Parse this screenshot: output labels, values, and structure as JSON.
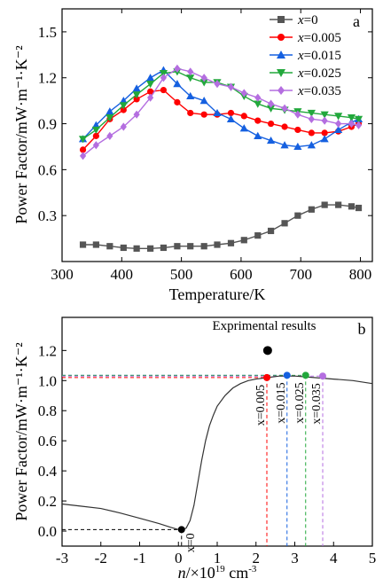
{
  "chart_data": [
    {
      "type": "line",
      "panel_label": "a",
      "xlabel": "Temperature/K",
      "ylabel": "Power Factor/mW·m⁻¹·K⁻²",
      "xlim": [
        300,
        820
      ],
      "ylim": [
        0.0,
        1.65
      ],
      "xticks": [
        300,
        400,
        500,
        600,
        700,
        800
      ],
      "yticks": [
        0.3,
        0.6,
        0.9,
        1.2,
        1.5
      ],
      "ytick_labels": [
        "0.3",
        "0.6",
        "0.9",
        "1.2",
        "1.5"
      ],
      "legend_position": "top-right",
      "series": [
        {
          "name": "x=0",
          "label_prefix": "x",
          "label_value": "=0",
          "color": "#555555",
          "marker": "square",
          "x": [
            335,
            357,
            380,
            403,
            425,
            448,
            470,
            493,
            515,
            538,
            560,
            583,
            605,
            628,
            650,
            673,
            695,
            718,
            740,
            763,
            785,
            797
          ],
          "y": [
            0.11,
            0.11,
            0.1,
            0.09,
            0.085,
            0.085,
            0.09,
            0.1,
            0.1,
            0.1,
            0.11,
            0.12,
            0.14,
            0.17,
            0.2,
            0.25,
            0.3,
            0.34,
            0.37,
            0.37,
            0.36,
            0.35
          ]
        },
        {
          "name": "x=0.005",
          "label_prefix": "x",
          "label_value": "=0.005",
          "color": "#ff0000",
          "marker": "circle",
          "x": [
            335,
            357,
            380,
            403,
            425,
            448,
            470,
            493,
            515,
            538,
            560,
            583,
            605,
            628,
            650,
            673,
            695,
            718,
            740,
            763,
            785,
            797
          ],
          "y": [
            0.73,
            0.82,
            0.93,
            0.99,
            1.06,
            1.11,
            1.12,
            1.04,
            0.97,
            0.96,
            0.96,
            0.97,
            0.95,
            0.92,
            0.9,
            0.88,
            0.86,
            0.84,
            0.84,
            0.85,
            0.88,
            0.9
          ]
        },
        {
          "name": "x=0.015",
          "label_prefix": "x",
          "label_value": "=0.015",
          "color": "#1560e0",
          "marker": "triangle-up",
          "x": [
            335,
            357,
            380,
            403,
            425,
            448,
            470,
            493,
            515,
            538,
            560,
            583,
            605,
            628,
            650,
            673,
            695,
            718,
            740,
            763,
            785,
            797
          ],
          "y": [
            0.8,
            0.89,
            0.98,
            1.05,
            1.13,
            1.2,
            1.25,
            1.16,
            1.08,
            1.05,
            0.97,
            0.93,
            0.87,
            0.82,
            0.79,
            0.76,
            0.75,
            0.76,
            0.8,
            0.86,
            0.91,
            0.93
          ]
        },
        {
          "name": "x=0.025",
          "label_prefix": "x",
          "label_value": "=0.025",
          "color": "#22a83c",
          "marker": "triangle-down",
          "x": [
            335,
            357,
            380,
            403,
            425,
            448,
            470,
            493,
            515,
            538,
            560,
            583,
            605,
            628,
            650,
            673,
            695,
            718,
            740,
            763,
            785,
            797
          ],
          "y": [
            0.8,
            0.86,
            0.94,
            1.02,
            1.09,
            1.16,
            1.23,
            1.24,
            1.2,
            1.17,
            1.17,
            1.14,
            1.08,
            1.03,
            1.0,
            0.99,
            0.98,
            0.97,
            0.96,
            0.95,
            0.94,
            0.93
          ]
        },
        {
          "name": "x=0.035",
          "label_prefix": "x",
          "label_value": "=0.035",
          "color": "#b46ee0",
          "marker": "diamond",
          "x": [
            335,
            357,
            380,
            403,
            425,
            448,
            470,
            493,
            515,
            538,
            560,
            583,
            605,
            628,
            650,
            673,
            695,
            718,
            740,
            763,
            785,
            797
          ],
          "y": [
            0.69,
            0.76,
            0.82,
            0.88,
            0.96,
            1.07,
            1.2,
            1.26,
            1.24,
            1.2,
            1.16,
            1.14,
            1.1,
            1.07,
            1.03,
            1.0,
            0.96,
            0.93,
            0.92,
            0.9,
            0.9,
            0.89
          ]
        }
      ]
    },
    {
      "type": "line",
      "panel_label": "b",
      "xlabel_prefix": "n",
      "xlabel_mid": "/×10",
      "xlabel_exp": "19",
      "xlabel_unit": " cm",
      "xlabel_unit_exp": "-3",
      "ylabel": "Power Factor/mW·m⁻¹·K⁻²",
      "xlim": [
        -3,
        5
      ],
      "ylim": [
        -0.1,
        1.42
      ],
      "xticks": [
        -3,
        -2,
        -1,
        0,
        1,
        2,
        3,
        4,
        5
      ],
      "yticks": [
        0.0,
        0.2,
        0.4,
        0.6,
        0.8,
        1.0,
        1.2
      ],
      "ytick_labels": [
        "0.0",
        "0.2",
        "0.4",
        "0.6",
        "0.8",
        "1.0",
        "1.2"
      ],
      "model_curve": {
        "color": "#333333",
        "x": [
          -3,
          -2.5,
          -2,
          -1.5,
          -1,
          -0.5,
          -0.2,
          0,
          0.1,
          0.2,
          0.3,
          0.4,
          0.5,
          0.6,
          0.7,
          0.8,
          0.9,
          1.0,
          1.2,
          1.4,
          1.6,
          1.8,
          2.0,
          2.3,
          2.6,
          3.0,
          3.5,
          4.0,
          4.5,
          5.0
        ],
        "y": [
          0.18,
          0.165,
          0.15,
          0.12,
          0.085,
          0.05,
          0.025,
          0.01,
          0.008,
          0.02,
          0.07,
          0.17,
          0.32,
          0.47,
          0.6,
          0.7,
          0.77,
          0.83,
          0.9,
          0.95,
          0.98,
          1.0,
          1.01,
          1.02,
          1.03,
          1.03,
          1.02,
          1.01,
          1.0,
          0.98
        ]
      },
      "annotation": "Exprimental results",
      "experimental_point": {
        "x": 2.3,
        "y": 1.2
      },
      "points": [
        {
          "label": "x=0",
          "x": 0.08,
          "y": 0.01,
          "color": "#000000"
        },
        {
          "label": "x=0.005",
          "x": 2.28,
          "y": 1.02,
          "color": "#ff0000"
        },
        {
          "label": "x=0.015",
          "x": 2.8,
          "y": 1.035,
          "color": "#1560e0"
        },
        {
          "label": "x=0.025",
          "x": 3.28,
          "y": 1.035,
          "color": "#22a83c"
        },
        {
          "label": "x=0.035",
          "x": 3.72,
          "y": 1.03,
          "color": "#b46ee0"
        }
      ]
    }
  ]
}
